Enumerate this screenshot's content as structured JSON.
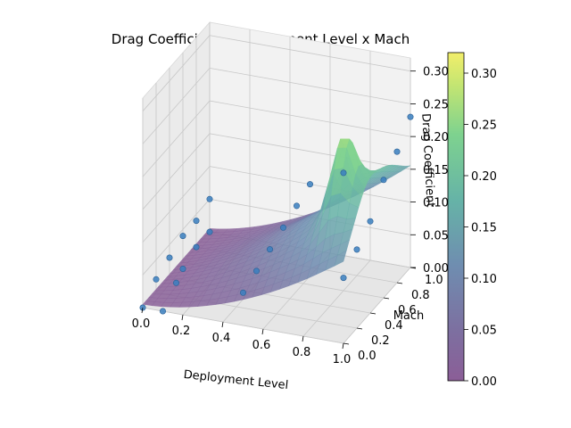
{
  "chart_data": {
    "type": "surface3d",
    "title": "Drag Coefficient x Deployment Level x Mach",
    "xlabel": "Deployment Level",
    "ylabel": "Mach",
    "zlabel": "Drag Coefficient",
    "xlim": [
      0,
      1
    ],
    "ylim": [
      0,
      1
    ],
    "zlim": [
      0,
      0.32
    ],
    "x_ticks": [
      "0.0",
      "0.2",
      "0.4",
      "0.6",
      "0.8",
      "1.0"
    ],
    "y_ticks": [
      "0.0",
      "0.2",
      "0.4",
      "0.6",
      "0.8",
      "1.0"
    ],
    "z_ticks": [
      "0.00",
      "0.05",
      "0.10",
      "0.15",
      "0.20",
      "0.25",
      "0.30"
    ],
    "colorbar": {
      "ticks": [
        "0.00",
        "0.05",
        "0.10",
        "0.15",
        "0.20",
        "0.25",
        "0.30"
      ],
      "range": [
        0,
        0.32
      ],
      "colormap": "viridis"
    },
    "grid": true,
    "scatter_points": [
      {
        "x": 0.0,
        "y": 0.0,
        "z": 0.0
      },
      {
        "x": 0.0,
        "y": 0.2,
        "z": 0.02
      },
      {
        "x": 0.0,
        "y": 0.4,
        "z": 0.03
      },
      {
        "x": 0.0,
        "y": 0.6,
        "z": 0.04
      },
      {
        "x": 0.0,
        "y": 0.8,
        "z": 0.04
      },
      {
        "x": 0.0,
        "y": 1.0,
        "z": 0.05
      },
      {
        "x": 0.1,
        "y": 0.0,
        "z": 0.0
      },
      {
        "x": 0.1,
        "y": 0.2,
        "z": 0.02
      },
      {
        "x": 0.1,
        "y": 0.3,
        "z": 0.03
      },
      {
        "x": 0.1,
        "y": 0.5,
        "z": 0.04
      },
      {
        "x": 0.1,
        "y": 0.7,
        "z": 0.04
      },
      {
        "x": 0.5,
        "y": 0.0,
        "z": 0.05
      },
      {
        "x": 0.5,
        "y": 0.2,
        "z": 0.06
      },
      {
        "x": 0.5,
        "y": 0.4,
        "z": 0.07
      },
      {
        "x": 0.5,
        "y": 0.6,
        "z": 0.08
      },
      {
        "x": 0.5,
        "y": 0.8,
        "z": 0.09
      },
      {
        "x": 0.5,
        "y": 1.0,
        "z": 0.1
      },
      {
        "x": 1.0,
        "y": 0.0,
        "z": 0.1
      },
      {
        "x": 1.0,
        "y": 0.2,
        "z": 0.12
      },
      {
        "x": 1.0,
        "y": 0.4,
        "z": 0.14
      },
      {
        "x": 1.0,
        "y": 0.6,
        "z": 0.18
      },
      {
        "x": 1.0,
        "y": 0.8,
        "z": 0.2
      },
      {
        "x": 1.0,
        "y": 1.0,
        "z": 0.23
      },
      {
        "x": 0.9,
        "y": 0.3,
        "z": 0.22
      }
    ]
  }
}
